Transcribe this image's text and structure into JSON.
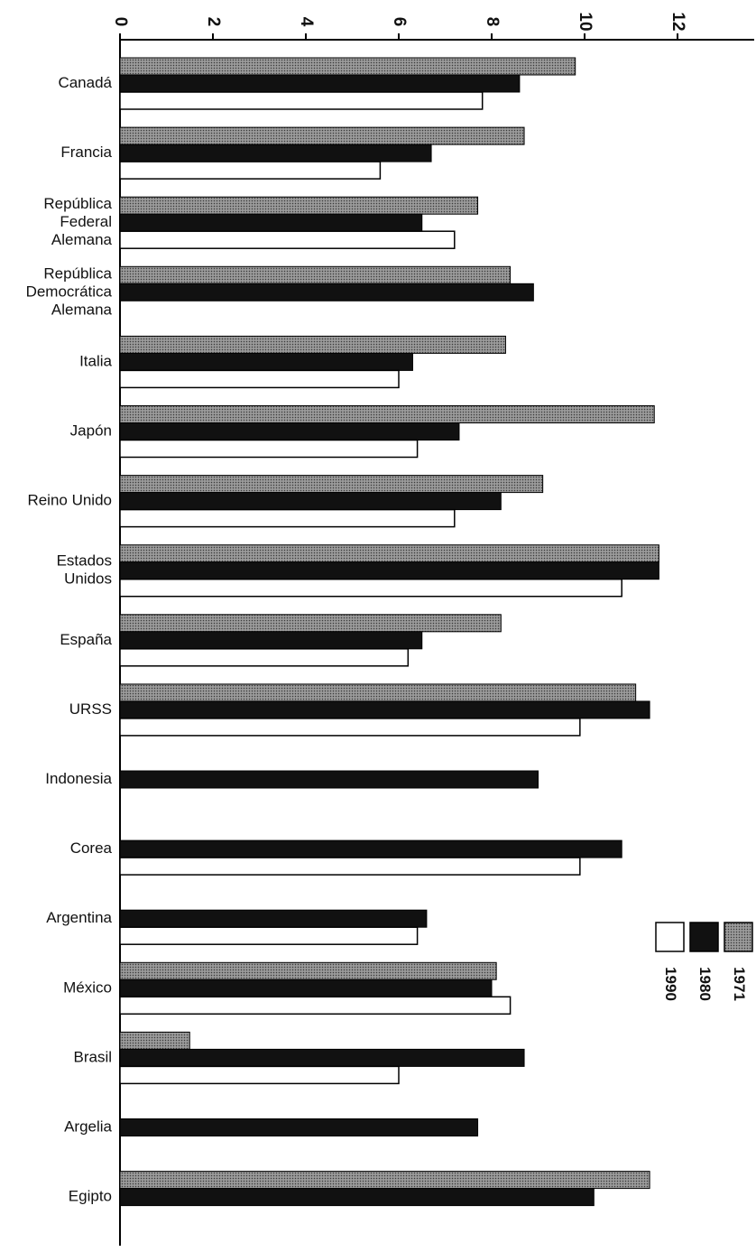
{
  "chart_data": {
    "type": "bar",
    "orientation": "horizontal",
    "xlim": [
      0,
      13
    ],
    "ticks": [
      0,
      2,
      4,
      6,
      8,
      10,
      12
    ],
    "categories": [
      "Canadá",
      "Francia",
      "República Federal Alemana",
      "República Democrática Alemana",
      "Italia",
      "Japón",
      "Reino Unido",
      "Estados Unidos",
      "España",
      "URSS",
      "Indonesia",
      "Corea",
      "Argentina",
      "México",
      "Brasil",
      "Argelia",
      "Egipto"
    ],
    "series": [
      {
        "name": "1971",
        "pattern": "stipple",
        "values": [
          9.8,
          8.7,
          7.7,
          8.4,
          8.3,
          11.5,
          9.1,
          11.6,
          8.2,
          11.1,
          null,
          null,
          null,
          8.1,
          1.5,
          null,
          11.4
        ]
      },
      {
        "name": "1980",
        "pattern": "solid",
        "values": [
          8.6,
          6.7,
          6.5,
          8.9,
          6.3,
          7.3,
          8.2,
          11.6,
          6.5,
          11.4,
          9.0,
          10.8,
          6.6,
          8.0,
          8.7,
          7.7,
          10.2
        ]
      },
      {
        "name": "1990",
        "pattern": "outline",
        "values": [
          7.8,
          5.6,
          7.2,
          null,
          6.0,
          6.4,
          7.2,
          10.8,
          6.2,
          9.9,
          null,
          9.9,
          6.4,
          8.4,
          6.0,
          null,
          null
        ]
      }
    ],
    "legend_position": "right",
    "grid": false
  }
}
